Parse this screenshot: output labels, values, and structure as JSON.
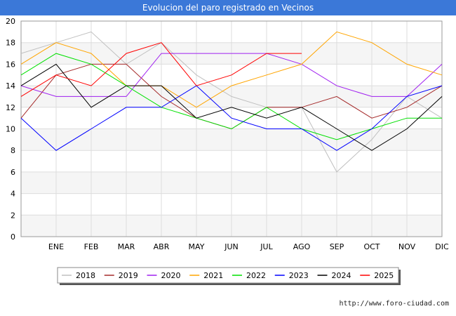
{
  "chart_data": {
    "type": "line",
    "title": "Evolucion del paro registrado en Vecinos",
    "xlabel": "",
    "ylabel": "",
    "x": [
      "",
      "ENE",
      "FEB",
      "MAR",
      "ABR",
      "MAY",
      "JUN",
      "JUL",
      "AGO",
      "SEP",
      "OCT",
      "NOV",
      "DIC"
    ],
    "ylim": [
      0,
      20
    ],
    "yticks": [
      0,
      2,
      4,
      6,
      8,
      10,
      12,
      14,
      16,
      18,
      20
    ],
    "grid": true,
    "legend_position": "bottom",
    "series": [
      {
        "name": "2018",
        "color": "#c0c0c0",
        "values": [
          17,
          18,
          19,
          16,
          18,
          15,
          13,
          12,
          12,
          6,
          9,
          13,
          11
        ]
      },
      {
        "name": "2019",
        "color": "#a52a2a",
        "values": [
          11,
          15,
          16,
          16,
          13,
          11,
          10,
          12,
          12,
          13,
          11,
          12,
          14
        ]
      },
      {
        "name": "2020",
        "color": "#a020f0",
        "values": [
          14,
          13,
          13,
          13,
          17,
          17,
          17,
          17,
          16,
          14,
          13,
          13,
          16
        ]
      },
      {
        "name": "2021",
        "color": "#ffa500",
        "values": [
          16,
          18,
          17,
          14,
          14,
          12,
          14,
          15,
          16,
          19,
          18,
          16,
          15
        ]
      },
      {
        "name": "2022",
        "color": "#00e000",
        "values": [
          15,
          17,
          16,
          14,
          12,
          11,
          10,
          12,
          10,
          9,
          10,
          11,
          11
        ]
      },
      {
        "name": "2023",
        "color": "#0000ff",
        "values": [
          11,
          8,
          10,
          12,
          12,
          14,
          11,
          10,
          10,
          8,
          10,
          13,
          14
        ]
      },
      {
        "name": "2024",
        "color": "#000000",
        "values": [
          14,
          16,
          12,
          14,
          14,
          11,
          12,
          11,
          12,
          10,
          8,
          10,
          13
        ]
      },
      {
        "name": "2025",
        "color": "#ff0000",
        "values": [
          13,
          15,
          14,
          17,
          18,
          14,
          15,
          17,
          17,
          null,
          null,
          null,
          null
        ]
      }
    ]
  },
  "footer": {
    "url": "http://www.foro-ciudad.com"
  }
}
